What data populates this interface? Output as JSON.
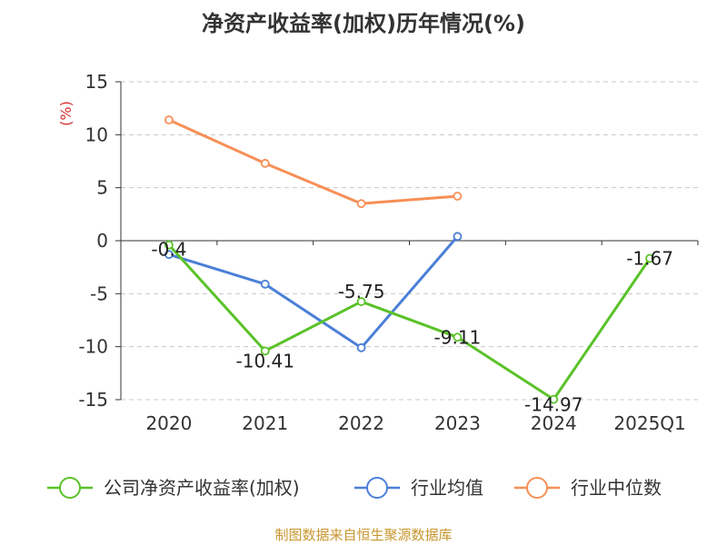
{
  "chart_data": {
    "type": "line",
    "title": "净资产收益率(加权)历年情况(%)",
    "ylabel": "(%)",
    "categories": [
      "2020",
      "2021",
      "2022",
      "2023",
      "2024",
      "2025Q1"
    ],
    "yticks": [
      15,
      10,
      5,
      0,
      -5,
      -10,
      -15
    ],
    "ylim": [
      -15,
      15
    ],
    "grid": true,
    "legend_position": "bottom",
    "series": [
      {
        "name": "公司净资产收益率(加权)",
        "color": "#5ac229",
        "values": [
          -0.4,
          -10.41,
          -5.75,
          -9.11,
          -14.97,
          -1.67
        ],
        "labels": [
          "-0.4",
          "-10.41",
          "-5.75",
          "-9.11",
          "-14.97",
          "-1.67"
        ]
      },
      {
        "name": "行业均值",
        "color": "#4b7fd7",
        "values": [
          -1.3,
          -4.1,
          -10.1,
          0.4,
          null,
          null
        ]
      },
      {
        "name": "行业中位数",
        "color": "#f78f56",
        "values": [
          11.4,
          7.3,
          3.5,
          4.2,
          null,
          null
        ]
      }
    ],
    "source": "制图数据来自恒生聚源数据库",
    "source_color": "#c7962e",
    "unit_color": "#d42f2f"
  }
}
